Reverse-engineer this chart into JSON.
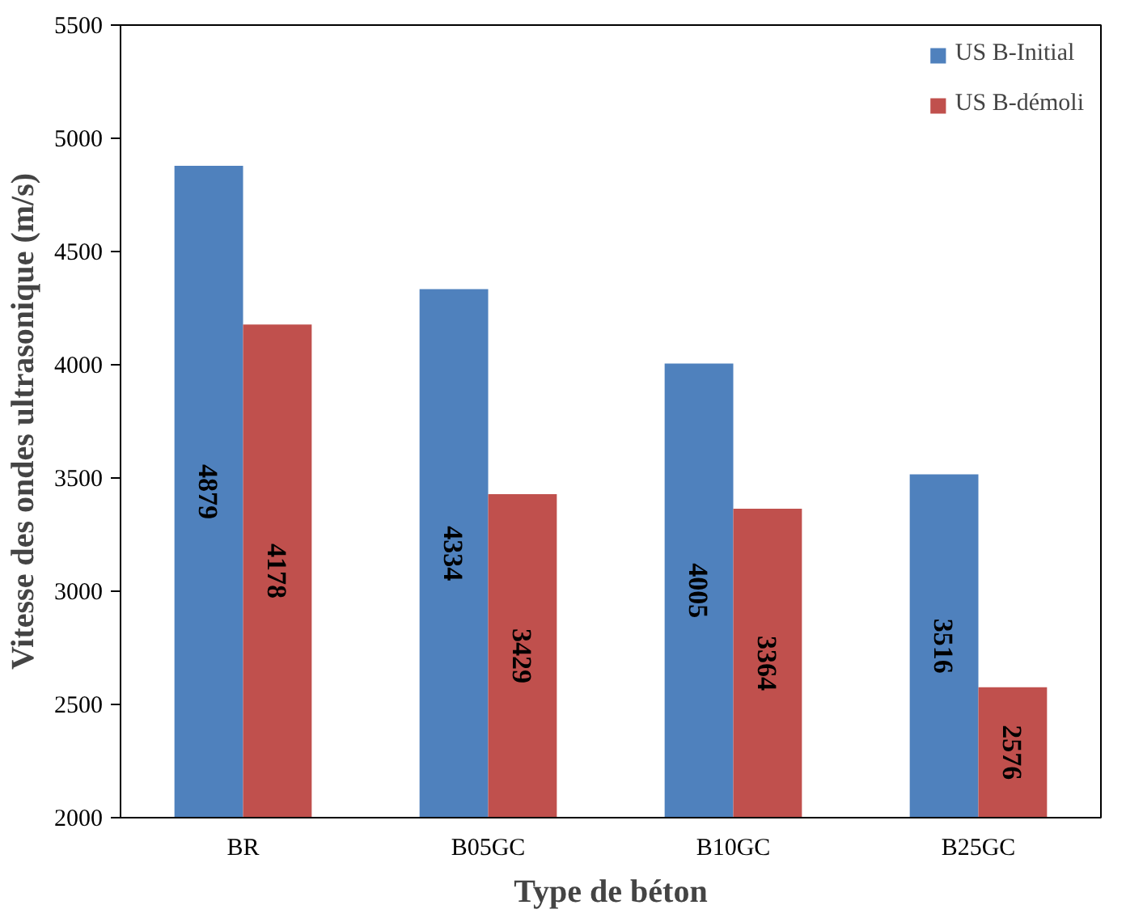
{
  "chart_data": {
    "type": "bar",
    "xlabel": "Type de béton",
    "ylabel": "Vitesse des ondes ultrasonique (m/s)",
    "categories": [
      "BR",
      "B05GC",
      "B10GC",
      "B25GC"
    ],
    "series": [
      {
        "name": "US B-Initial",
        "color": "#4f81bd",
        "values": [
          4879,
          4334,
          4005,
          3516
        ]
      },
      {
        "name": "US B-démoli",
        "color": "#c0504d",
        "values": [
          4178,
          3429,
          3364,
          2576
        ]
      }
    ],
    "ylim": [
      2000,
      5500
    ],
    "yticks": [
      2000,
      2500,
      3000,
      3500,
      4000,
      4500,
      5000,
      5500
    ],
    "data_labels": true,
    "grid": false,
    "legend": "top right"
  }
}
